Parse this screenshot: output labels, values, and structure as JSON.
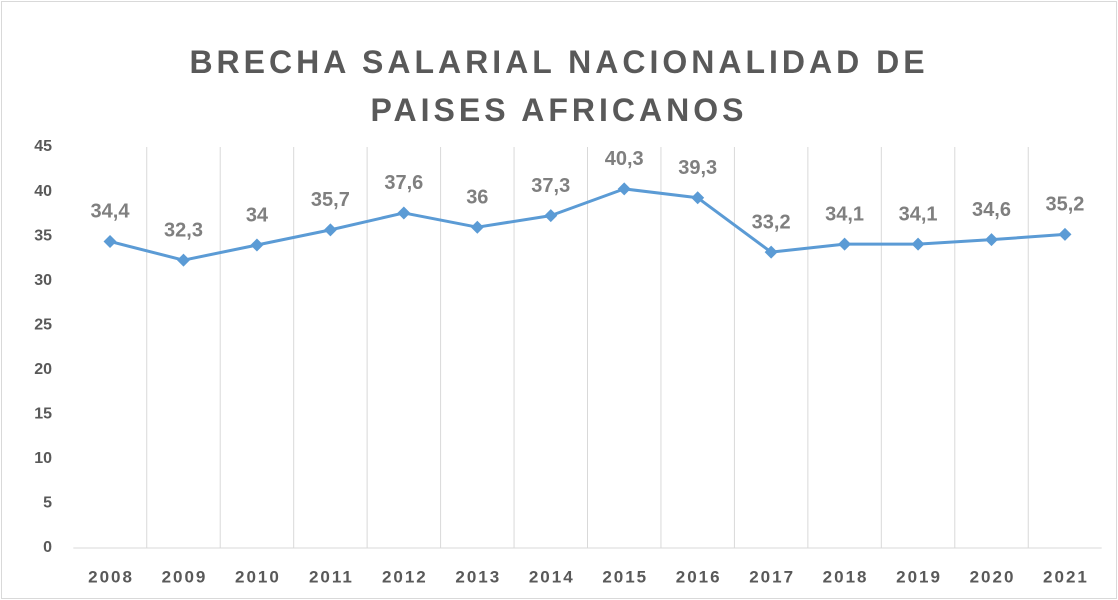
{
  "chart_data": {
    "type": "line",
    "title": "BRECHA SALARIAL NACIONALIDAD DE PAISES AFRICANOS",
    "categories": [
      "2008",
      "2009",
      "2010",
      "2011",
      "2012",
      "2013",
      "2014",
      "2015",
      "2016",
      "2017",
      "2018",
      "2019",
      "2020",
      "2021"
    ],
    "values": [
      34.4,
      32.3,
      34,
      35.7,
      37.6,
      36,
      37.3,
      40.3,
      39.3,
      33.2,
      34.1,
      34.1,
      34.6,
      35.2
    ],
    "value_labels": [
      "34,4",
      "32,3",
      "34",
      "35,7",
      "37,6",
      "36",
      "37,3",
      "40,3",
      "39,3",
      "33,2",
      "34,1",
      "34,1",
      "34,6",
      "35,2"
    ],
    "color": "#5b9bd5",
    "ylim": [
      0,
      45
    ],
    "yticks": [
      0,
      5,
      10,
      15,
      20,
      25,
      30,
      35,
      40,
      45
    ],
    "grid": false
  }
}
